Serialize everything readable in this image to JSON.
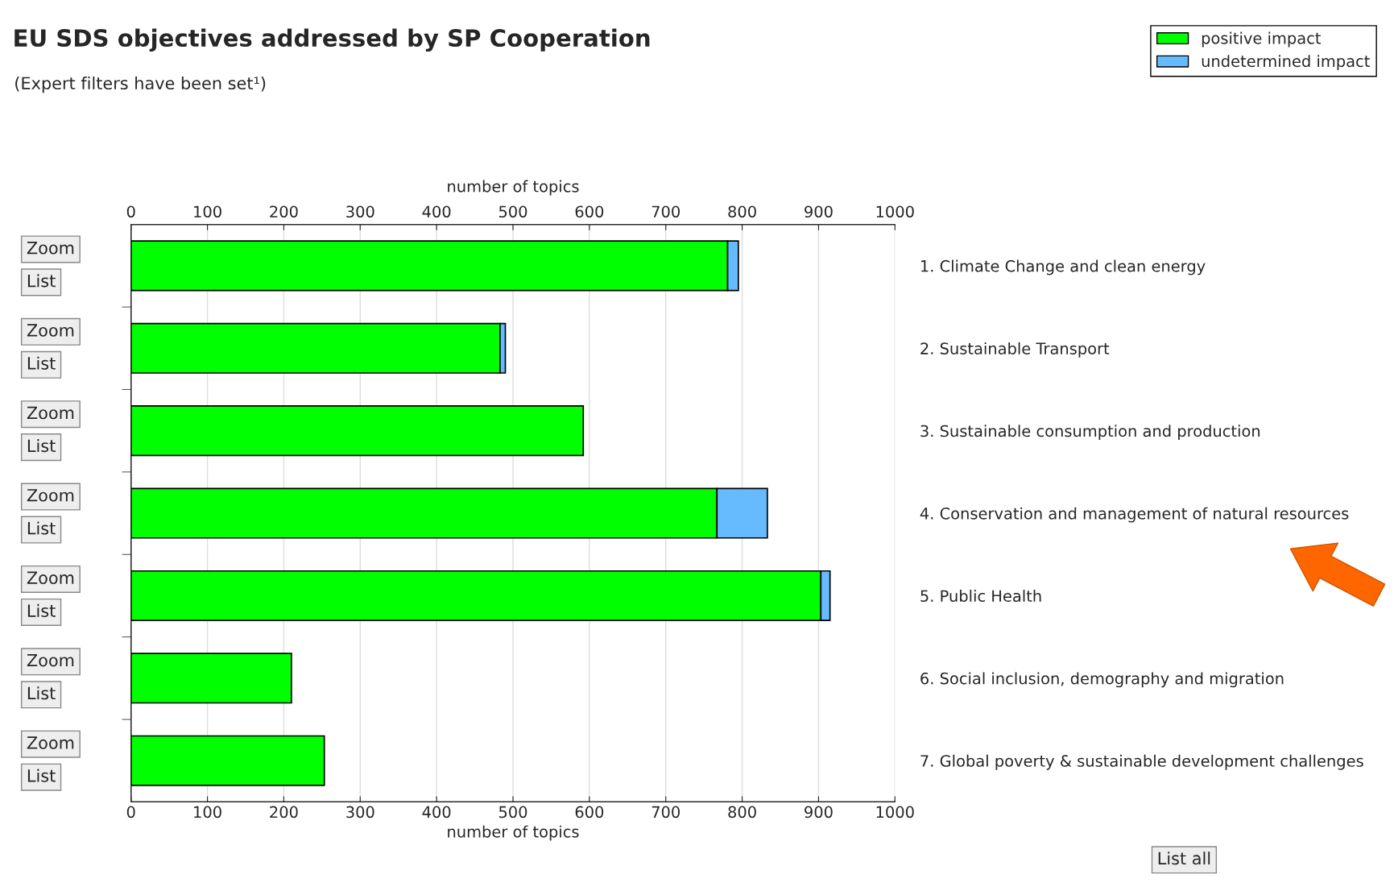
{
  "chart_data": {
    "type": "bar",
    "orientation": "horizontal",
    "stacked": true,
    "title": "EU SDS objectives addressed by SP Cooperation",
    "subtitle": "(Expert filters have been set¹)",
    "xlabel": "number of topics",
    "x2label": "number of topics",
    "categories": [
      "1. Climate Change and clean energy",
      "2. Sustainable Transport",
      "3. Sustainable consumption and production",
      "4. Conservation and management of natural resources",
      "5. Public Health",
      "6. Social inclusion, demography and migration",
      "7. Global poverty & sustainable development challenges"
    ],
    "series": [
      {
        "name": "positive impact",
        "color": "#00ff00",
        "values": [
          781,
          483,
          592,
          767,
          903,
          210,
          253
        ]
      },
      {
        "name": "undetermined impact",
        "color": "#66bbff",
        "values": [
          14,
          7,
          null,
          66,
          12,
          null,
          null
        ]
      }
    ],
    "xlim": [
      0,
      1000
    ],
    "xticks": [
      0,
      100,
      200,
      300,
      400,
      500,
      600,
      700,
      800,
      900,
      1000
    ],
    "x2lim": [
      0,
      1000
    ],
    "x2ticks": [
      0,
      100,
      200,
      300,
      400,
      500,
      600,
      700,
      800,
      900,
      1000
    ],
    "grid": "x",
    "legend": "top right",
    "annotations": [
      "Zoom",
      "List",
      "Zoom",
      "List",
      "Zoom",
      "List",
      "Zoom",
      "List",
      "Zoom",
      "List",
      "Zoom",
      "List",
      "Zoom",
      "List",
      "List all"
    ]
  }
}
